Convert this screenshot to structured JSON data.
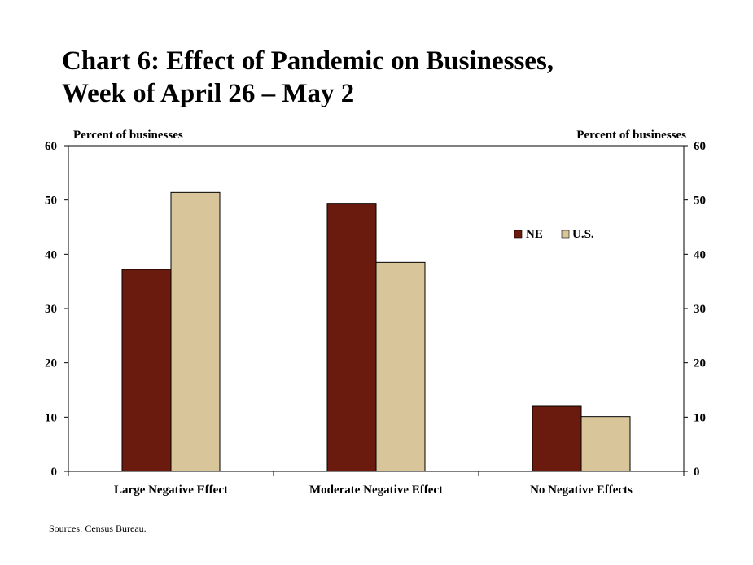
{
  "title_line1": "Chart 6: Effect of Pandemic on Businesses,",
  "title_line2": "Week of April 26 – May 2",
  "source": "Sources: Census Bureau.",
  "colors": {
    "NE": "#6b1a0e",
    "US": "#d9c59a"
  },
  "chart_data": {
    "type": "bar",
    "title": "Chart 6: Effect of Pandemic on Businesses, Week of April 26 – May 2",
    "ylabel_left": "Percent of businesses",
    "ylabel_right": "Percent of businesses",
    "ylim": [
      0,
      60
    ],
    "yticks": [
      0,
      10,
      20,
      30,
      40,
      50,
      60
    ],
    "categories": [
      "Large Negative Effect",
      "Moderate Negative Effect",
      "No Negative Effects"
    ],
    "series": [
      {
        "name": "NE",
        "values": [
          37.2,
          49.4,
          12.0
        ]
      },
      {
        "name": "U.S.",
        "values": [
          51.4,
          38.5,
          10.1
        ]
      }
    ],
    "legend_position": "upper-right inside plot",
    "grid": false
  }
}
